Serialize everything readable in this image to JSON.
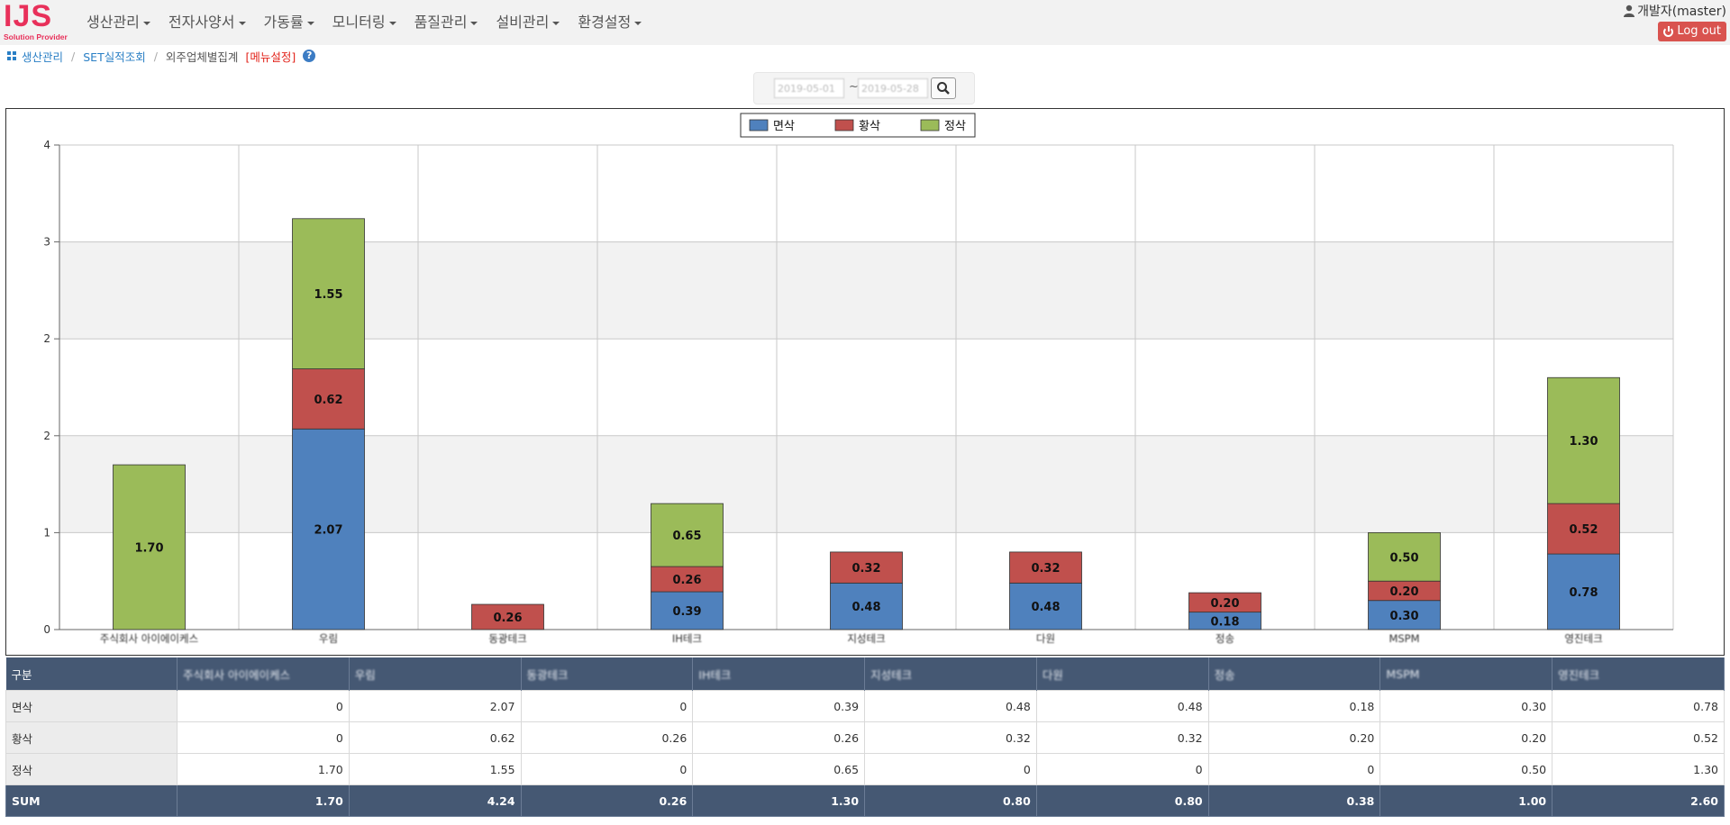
{
  "app": {
    "logo_main": "IJS",
    "logo_sub": "Solution Provider"
  },
  "nav": {
    "items": [
      "생산관리",
      "전자사양서",
      "가동률",
      "모니터링",
      "품질관리",
      "설비관리",
      "환경설정"
    ]
  },
  "user": {
    "name": "개발자(master)",
    "logout_label": "Log out"
  },
  "breadcrumb": {
    "items": [
      "생산관리",
      "SET실적조회"
    ],
    "current": "외주업체별집계",
    "menu_setting": "[메뉴설정]",
    "help": "?"
  },
  "filter": {
    "date_from": "2019-05-01",
    "date_to": "2019-05-28",
    "separator": "~"
  },
  "chart_data": {
    "type": "bar",
    "stacked": true,
    "categories": [
      "주식회사 아이에이케스",
      "우림",
      "동광테크",
      "IH테크",
      "지성테크",
      "다원",
      "정송",
      "MSPM",
      "영진테크"
    ],
    "series": [
      {
        "name": "면삭",
        "color": "#4f81bd",
        "values": [
          0,
          2.07,
          0,
          0.39,
          0.48,
          0.48,
          0.18,
          0.3,
          0.78
        ]
      },
      {
        "name": "황삭",
        "color": "#c0504d",
        "values": [
          0,
          0.62,
          0.26,
          0.26,
          0.32,
          0.32,
          0.2,
          0.2,
          0.52
        ]
      },
      {
        "name": "정삭",
        "color": "#9bbb59",
        "values": [
          1.7,
          1.55,
          0,
          0.65,
          0,
          0,
          0,
          0.5,
          1.3
        ]
      }
    ],
    "value_labels": [
      [
        "",
        "2.07",
        "",
        "0.39",
        "0.48",
        "0.48",
        "0.18",
        "0.30",
        "0.78"
      ],
      [
        "",
        "0.62",
        "0.26",
        "0.26",
        "0.32",
        "0.32",
        "0.20",
        "0.20",
        "0.52"
      ],
      [
        "1.70",
        "1.55",
        "",
        "0.65",
        "",
        "",
        "",
        "0.50",
        "1.30"
      ]
    ],
    "y_tick_labels": [
      "0",
      "1",
      "2",
      "2",
      "3",
      "4"
    ],
    "ylim": [
      0,
      5
    ],
    "grid": true,
    "legend_position": "top-center"
  },
  "table": {
    "corner": "구분",
    "columns": [
      "주식회사 아이에이케스",
      "우림",
      "동광테크",
      "IH테크",
      "지성테크",
      "다원",
      "정송",
      "MSPM",
      "영진테크"
    ],
    "rows": [
      {
        "label": "면삭",
        "values": [
          "0",
          "2.07",
          "0",
          "0.39",
          "0.48",
          "0.48",
          "0.18",
          "0.30",
          "0.78"
        ]
      },
      {
        "label": "황삭",
        "values": [
          "0",
          "0.62",
          "0.26",
          "0.26",
          "0.32",
          "0.32",
          "0.20",
          "0.20",
          "0.52"
        ]
      },
      {
        "label": "정삭",
        "values": [
          "1.70",
          "1.55",
          "0",
          "0.65",
          "0",
          "0",
          "0",
          "0.50",
          "1.30"
        ]
      }
    ],
    "sum": {
      "label": "SUM",
      "values": [
        "1.70",
        "4.24",
        "0.26",
        "1.30",
        "0.80",
        "0.80",
        "0.38",
        "1.00",
        "2.60"
      ]
    }
  },
  "colors": {
    "brand": "#e8305a",
    "link": "#2a7fc5",
    "table_header": "#455873",
    "logout": "#d9534f"
  }
}
